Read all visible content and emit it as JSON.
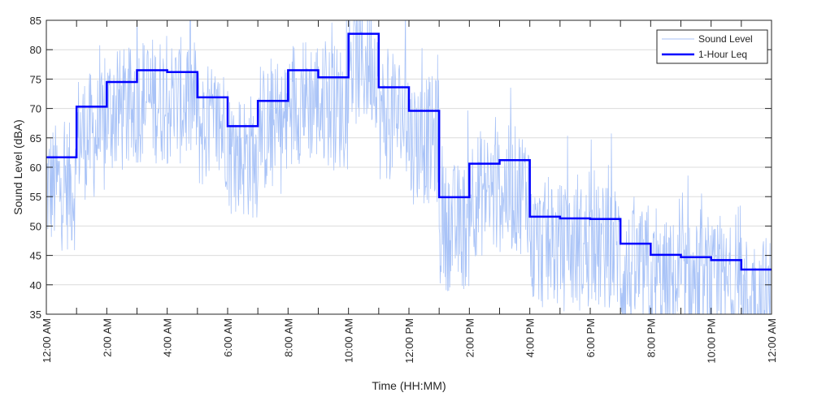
{
  "chart_data": {
    "type": "line",
    "title": "",
    "xlabel": "Time (HH:MM)",
    "ylabel": "Sound Level (dBA)",
    "xlim_hours": [
      0,
      24
    ],
    "ylim": [
      35,
      85
    ],
    "yticks": [
      35,
      40,
      45,
      50,
      55,
      60,
      65,
      70,
      75,
      80,
      85
    ],
    "xtick_hours": [
      0,
      2,
      4,
      6,
      8,
      10,
      12,
      14,
      16,
      18,
      20,
      22,
      24
    ],
    "xtick_labels": [
      "12:00 AM",
      "2:00 AM",
      "4:00 AM",
      "6:00 AM",
      "8:00 AM",
      "10:00 AM",
      "12:00 PM",
      "2:00 PM",
      "4:00 PM",
      "6:00 PM",
      "8:00 PM",
      "10:00 PM",
      "12:00 AM"
    ],
    "grid": "horizontal",
    "legend_position": "top-right",
    "series": [
      {
        "name": "Sound Level",
        "color": "#a9c3f7",
        "kind": "noisy 1-minute trace fluctuating around the hourly Leq (approx. ±10 dBA)"
      },
      {
        "name": "1-Hour Leq",
        "color": "#0000ff",
        "kind": "step",
        "hours": [
          0,
          1,
          2,
          3,
          4,
          5,
          6,
          7,
          8,
          9,
          10,
          11,
          12,
          13,
          14,
          15,
          16,
          17,
          18,
          19,
          20,
          21,
          22,
          23
        ],
        "values": [
          61.7,
          70.3,
          74.5,
          76.5,
          76.2,
          71.9,
          67.0,
          71.3,
          76.5,
          75.3,
          82.7,
          73.6,
          69.6,
          54.9,
          60.6,
          61.2,
          51.6,
          51.3,
          51.2,
          47.0,
          45.1,
          44.7,
          44.2,
          42.6
        ]
      }
    ]
  }
}
